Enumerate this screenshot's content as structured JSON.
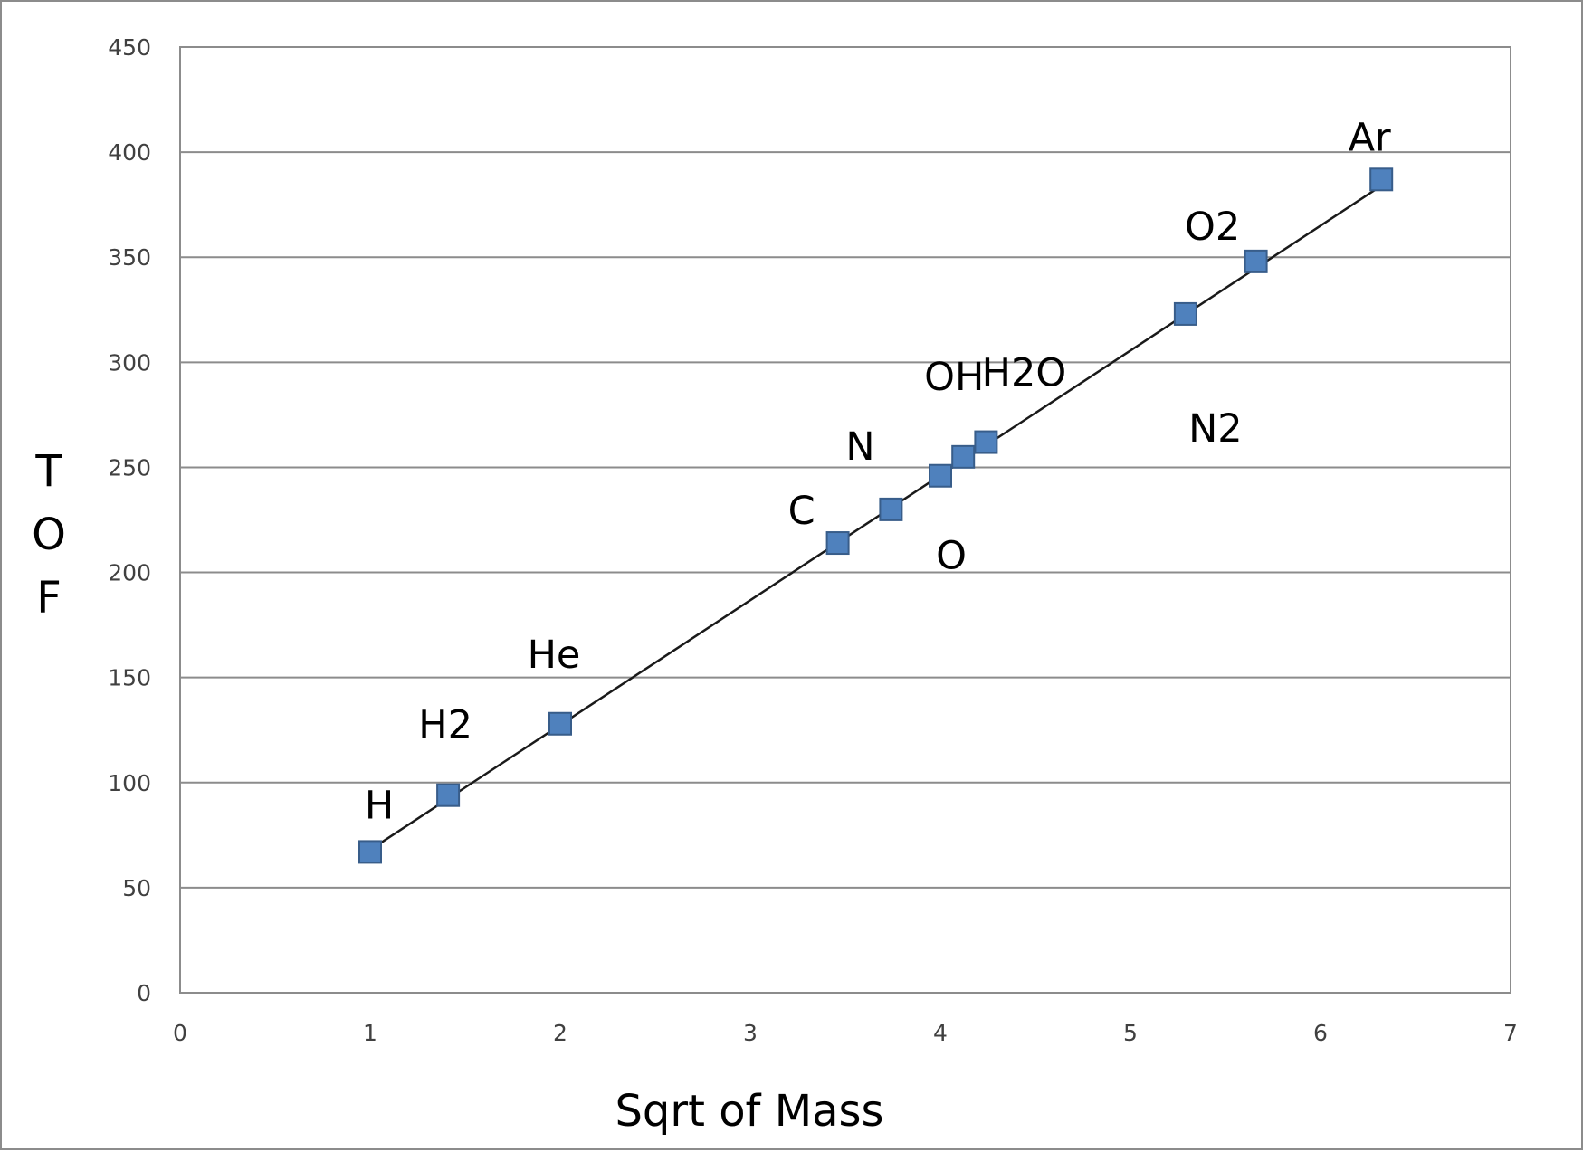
{
  "chart_data": {
    "type": "scatter",
    "title": "",
    "xlabel": "Sqrt of Mass",
    "ylabel": "TOF",
    "ylabel_letters": [
      "T",
      "O",
      "F"
    ],
    "xlim": [
      0,
      7
    ],
    "ylim": [
      0,
      450
    ],
    "x_ticks": [
      0,
      1,
      2,
      3,
      4,
      5,
      6,
      7
    ],
    "y_ticks": [
      0,
      50,
      100,
      150,
      200,
      250,
      300,
      350,
      400,
      450
    ],
    "grid": "horizontal",
    "legend": "none",
    "trendline": {
      "type": "linear",
      "x_range": [
        1,
        6.32
      ],
      "y_range": [
        68,
        384
      ]
    },
    "points": [
      {
        "label": "H",
        "x": 1.0,
        "y": 67
      },
      {
        "label": "H2",
        "x": 1.41,
        "y": 94
      },
      {
        "label": "He",
        "x": 2.0,
        "y": 128
      },
      {
        "label": "C",
        "x": 3.46,
        "y": 214
      },
      {
        "label": "N",
        "x": 3.74,
        "y": 230
      },
      {
        "label": "O",
        "x": 4.0,
        "y": 246
      },
      {
        "label": "OH",
        "x": 4.12,
        "y": 255
      },
      {
        "label": "H2O",
        "x": 4.24,
        "y": 262
      },
      {
        "label": "N2",
        "x": 5.29,
        "y": 323
      },
      {
        "label": "O2",
        "x": 5.66,
        "y": 348
      },
      {
        "label": "Ar",
        "x": 6.32,
        "y": 387
      }
    ],
    "colors": {
      "marker_fill": "#4f81bd",
      "marker_stroke": "#385d8a",
      "trendline": "#1a1a1a",
      "gridline": "#8c8c8c",
      "plot_border": "#8c8c8c"
    }
  }
}
